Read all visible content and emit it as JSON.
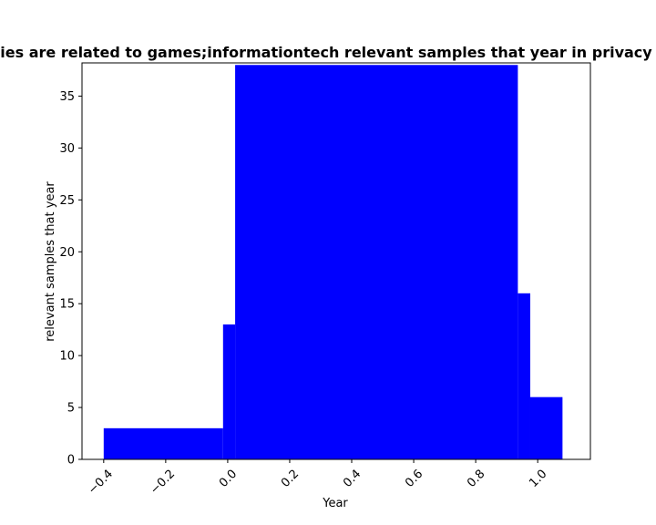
{
  "chart_data": {
    "type": "bar",
    "title": "ies are related to games;informationtech relevant samples that year in privacy",
    "xlabel": "Year",
    "ylabel": "relevant samples that year",
    "xlim": [
      -0.47,
      1.17
    ],
    "ylim": [
      0,
      38.2
    ],
    "x_ticks": [
      "−0.4",
      "−0.2",
      "0.0",
      "0.2",
      "0.4",
      "0.6",
      "0.8",
      "1.0"
    ],
    "y_ticks": [
      "0",
      "5",
      "10",
      "15",
      "20",
      "25",
      "30",
      "35"
    ],
    "bar_color": "#0000ff",
    "bars": [
      {
        "x0": -0.4,
        "x1": -0.015,
        "value": 3
      },
      {
        "x0": -0.015,
        "x1": 0.024,
        "value": 13
      },
      {
        "x0": 0.024,
        "x1": 0.936,
        "value": 38
      },
      {
        "x0": 0.936,
        "x1": 0.976,
        "value": 16
      },
      {
        "x0": 0.976,
        "x1": 1.08,
        "value": 6
      }
    ],
    "grid": false,
    "legend": "none"
  }
}
